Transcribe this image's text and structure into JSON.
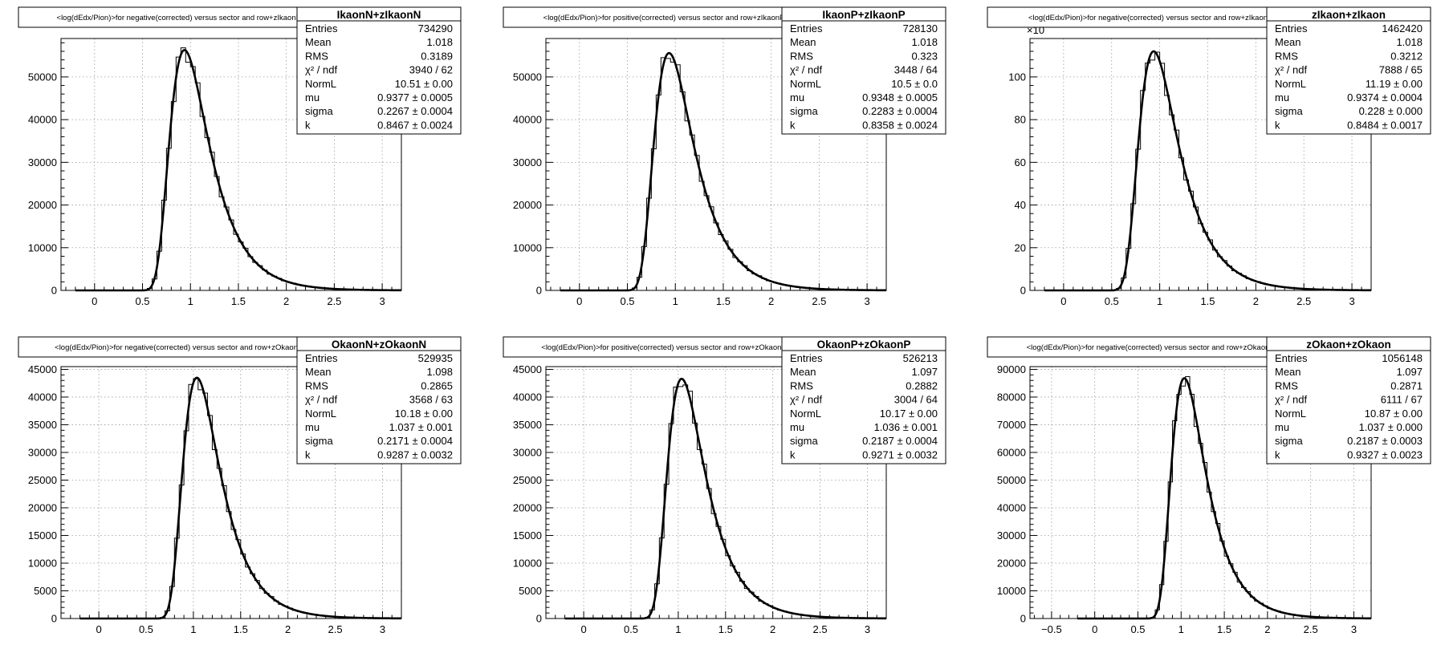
{
  "chart_data": [
    {
      "type": "line",
      "title": "<log(dEdx/Pion)>for negative(corrected) versus sector and row+zIkaonN",
      "xlabel": "",
      "ylabel": "",
      "xlim": [
        -0.35,
        3.2
      ],
      "ylim": [
        0,
        59000
      ],
      "x_ticks": [
        0,
        0.5,
        1,
        1.5,
        2,
        2.5,
        3
      ],
      "y_ticks": [
        0,
        10000,
        20000,
        30000,
        40000,
        50000
      ],
      "y_multiplier_label": "",
      "grid": true,
      "fit": {
        "normL": 10.51,
        "mu": 0.9377,
        "sigma": 0.2267,
        "k": 0.8467
      },
      "peak": 56300,
      "stats": {
        "name": "IkaonN+zIkaonN",
        "rows": [
          {
            "label": "Entries",
            "value": "734290"
          },
          {
            "label": "Mean",
            "value": "1.018"
          },
          {
            "label": "RMS",
            "value": "0.3189"
          },
          {
            "label": "χ² / ndf",
            "value": "3940 / 62"
          },
          {
            "label": "NormL",
            "value": "10.51 ± 0.00"
          },
          {
            "label": "mu",
            "value": "0.9377 ± 0.0005"
          },
          {
            "label": "sigma",
            "value": "0.2267 ± 0.0004"
          },
          {
            "label": "k",
            "value": "0.8467 ± 0.0024"
          }
        ]
      }
    },
    {
      "type": "line",
      "title": "<log(dEdx/Pion)>for positive(corrected) versus sector and row+zIkaonP",
      "xlabel": "",
      "ylabel": "",
      "xlim": [
        -0.35,
        3.2
      ],
      "ylim": [
        0,
        59000
      ],
      "x_ticks": [
        0,
        0.5,
        1,
        1.5,
        2,
        2.5,
        3
      ],
      "y_ticks": [
        0,
        10000,
        20000,
        30000,
        40000,
        50000
      ],
      "y_multiplier_label": "",
      "grid": true,
      "fit": {
        "normL": 10.5,
        "mu": 0.9348,
        "sigma": 0.2283,
        "k": 0.8358
      },
      "peak": 55600,
      "stats": {
        "name": "IkaonP+zIkaonP",
        "rows": [
          {
            "label": "Entries",
            "value": "728130"
          },
          {
            "label": "Mean",
            "value": "1.018"
          },
          {
            "label": "RMS",
            "value": "0.323"
          },
          {
            "label": "χ² / ndf",
            "value": "3448 / 64"
          },
          {
            "label": "NormL",
            "value": "10.5 ± 0.0"
          },
          {
            "label": "mu",
            "value": "0.9348 ± 0.0005"
          },
          {
            "label": "sigma",
            "value": "0.2283 ± 0.0004"
          },
          {
            "label": "k",
            "value": "0.8358 ± 0.0024"
          }
        ]
      }
    },
    {
      "type": "line",
      "title": "<log(dEdx/Pion)>for negative(corrected) versus sector and row+zIkaon",
      "xlabel": "",
      "ylabel": "",
      "xlim": [
        -0.35,
        3.2
      ],
      "ylim": [
        0,
        118
      ],
      "x_ticks": [
        0,
        0.5,
        1,
        1.5,
        2,
        2.5,
        3
      ],
      "y_ticks": [
        0,
        20,
        40,
        60,
        80,
        100
      ],
      "y_multiplier_label": "×10",
      "grid": true,
      "fit": {
        "normL": 11.19,
        "mu": 0.9374,
        "sigma": 0.228,
        "k": 0.8484
      },
      "peak": 112,
      "stats": {
        "name": "zIkaon+zIkaon",
        "rows": [
          {
            "label": "Entries",
            "value": "1462420"
          },
          {
            "label": "Mean",
            "value": "1.018"
          },
          {
            "label": "RMS",
            "value": "0.3212"
          },
          {
            "label": "χ² / ndf",
            "value": "7888 / 65"
          },
          {
            "label": "NormL",
            "value": "11.19 ± 0.00"
          },
          {
            "label": "mu",
            "value": "0.9374 ± 0.0004"
          },
          {
            "label": "sigma",
            "value": "0.228 ± 0.000"
          },
          {
            "label": "k",
            "value": "0.8484 ± 0.0017"
          }
        ]
      }
    },
    {
      "type": "line",
      "title": "<log(dEdx/Pion)>for negative(corrected) versus sector and row+zOkaonN",
      "xlabel": "",
      "ylabel": "",
      "xlim": [
        -0.4,
        3.2
      ],
      "ylim": [
        0,
        45500
      ],
      "x_ticks": [
        0,
        0.5,
        1,
        1.5,
        2,
        2.5,
        3
      ],
      "y_ticks": [
        0,
        5000,
        10000,
        15000,
        20000,
        25000,
        30000,
        35000,
        40000,
        45000
      ],
      "y_multiplier_label": "",
      "grid": true,
      "fit": {
        "normL": 10.18,
        "mu": 1.037,
        "sigma": 0.2171,
        "k": 0.9287
      },
      "peak": 43500,
      "stats": {
        "name": "OkaonN+zOkaonN",
        "rows": [
          {
            "label": "Entries",
            "value": "529935"
          },
          {
            "label": "Mean",
            "value": "1.098"
          },
          {
            "label": "RMS",
            "value": "0.2865"
          },
          {
            "label": "χ² / ndf",
            "value": "3568 / 63"
          },
          {
            "label": "NormL",
            "value": "10.18 ± 0.00"
          },
          {
            "label": "mu",
            "value": "1.037 ± 0.001"
          },
          {
            "label": "sigma",
            "value": "0.2171 ± 0.0004"
          },
          {
            "label": "k",
            "value": "0.9287 ± 0.0032"
          }
        ]
      }
    },
    {
      "type": "line",
      "title": "<log(dEdx/Pion)>for positive(corrected) versus sector and row+zOkaonP",
      "xlabel": "",
      "ylabel": "",
      "xlim": [
        -0.4,
        3.2
      ],
      "ylim": [
        0,
        45500
      ],
      "x_ticks": [
        0,
        0.5,
        1,
        1.5,
        2,
        2.5,
        3
      ],
      "y_ticks": [
        0,
        5000,
        10000,
        15000,
        20000,
        25000,
        30000,
        35000,
        40000,
        45000
      ],
      "y_multiplier_label": "",
      "grid": true,
      "fit": {
        "normL": 10.17,
        "mu": 1.036,
        "sigma": 0.2187,
        "k": 0.9271
      },
      "peak": 43300,
      "stats": {
        "name": "OkaonP+zOkaonP",
        "rows": [
          {
            "label": "Entries",
            "value": "526213"
          },
          {
            "label": "Mean",
            "value": "1.097"
          },
          {
            "label": "RMS",
            "value": "0.2882"
          },
          {
            "label": "χ² / ndf",
            "value": "3004 / 64"
          },
          {
            "label": "NormL",
            "value": "10.17 ± 0.00"
          },
          {
            "label": "mu",
            "value": "1.036 ± 0.001"
          },
          {
            "label": "sigma",
            "value": "0.2187 ± 0.0004"
          },
          {
            "label": "k",
            "value": "0.9271 ± 0.0032"
          }
        ]
      }
    },
    {
      "type": "line",
      "title": "<log(dEdx/Pion)>for negative(corrected) versus sector and row+zOkaon",
      "xlabel": "",
      "ylabel": "",
      "xlim": [
        -0.75,
        3.2
      ],
      "ylim": [
        0,
        91000
      ],
      "x_ticks": [
        -0.5,
        0,
        0.5,
        1,
        1.5,
        2,
        2.5,
        3
      ],
      "y_ticks": [
        0,
        10000,
        20000,
        30000,
        40000,
        50000,
        60000,
        70000,
        80000,
        90000
      ],
      "y_multiplier_label": "",
      "grid": true,
      "fit": {
        "normL": 10.87,
        "mu": 1.037,
        "sigma": 0.2187,
        "k": 0.9327
      },
      "peak": 86800,
      "stats": {
        "name": "zOkaon+zOkaon",
        "rows": [
          {
            "label": "Entries",
            "value": "1056148"
          },
          {
            "label": "Mean",
            "value": "1.097"
          },
          {
            "label": "RMS",
            "value": "0.2871"
          },
          {
            "label": "χ² / ndf",
            "value": "6111 / 67"
          },
          {
            "label": "NormL",
            "value": "10.87 ± 0.00"
          },
          {
            "label": "mu",
            "value": "1.037 ± 0.000"
          },
          {
            "label": "sigma",
            "value": "0.2187 ± 0.0003"
          },
          {
            "label": "k",
            "value": "0.9327 ± 0.0023"
          }
        ]
      }
    }
  ]
}
